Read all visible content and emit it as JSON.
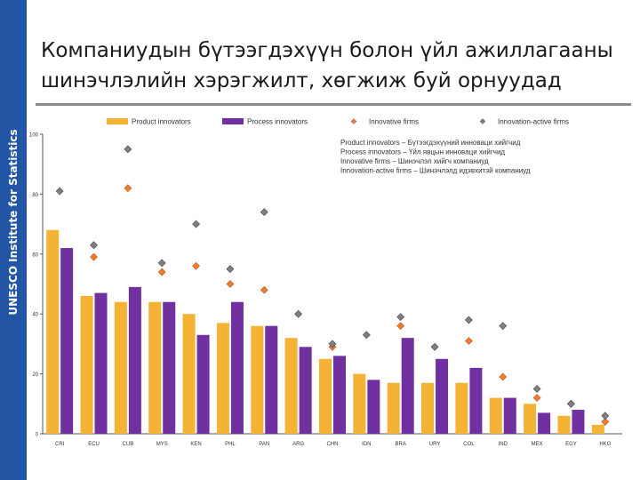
{
  "side_label": "UNESCO Institute for Statistics",
  "title_line1": "Компаниудын бүтээгдэхүүн болон үйл ажиллагааны",
  "title_line2": "шинэчлэлийн хэрэгжилт, хөгжиж буй орнуудад",
  "colors": {
    "product": "#f5b335",
    "process": "#7030a0",
    "innovative": "#ed7d31",
    "active": "#808080",
    "sidebar": "#2255a4"
  },
  "chart_data": {
    "type": "bar",
    "categories": [
      "CRI",
      "ECU",
      "CUB",
      "MYS",
      "KEN",
      "PHL",
      "PAN",
      "ARG",
      "CHN",
      "IDN",
      "BRA",
      "URY",
      "COL",
      "IND",
      "MEX",
      "EGY",
      "HKG"
    ],
    "series": [
      {
        "name": "Product innovators",
        "kind": "bar",
        "values": [
          68,
          46,
          44,
          44,
          40,
          37,
          36,
          32,
          25,
          20,
          17,
          17,
          17,
          12,
          10,
          6,
          3
        ]
      },
      {
        "name": "Process innovators",
        "kind": "bar",
        "values": [
          62,
          47,
          49,
          44,
          33,
          44,
          36,
          29,
          26,
          18,
          32,
          25,
          22,
          12,
          7,
          8,
          null
        ]
      },
      {
        "name": "Innovative firms",
        "kind": "marker",
        "values": [
          null,
          59,
          82,
          54,
          56,
          50,
          48,
          null,
          29,
          null,
          36,
          null,
          31,
          19,
          12,
          10,
          4
        ]
      },
      {
        "name": "Innovation-active firms",
        "kind": "marker",
        "values": [
          81,
          63,
          95,
          57,
          70,
          55,
          74,
          40,
          30,
          33,
          39,
          29,
          38,
          36,
          15,
          10,
          6
        ]
      }
    ],
    "ylim": [
      0,
      100
    ],
    "yticks": [
      0,
      20,
      40,
      60,
      80,
      100
    ],
    "grid": false,
    "legend_position": "top",
    "annotation_lines": [
      "Product innovators – Бүтээгдэхүүний инноваци хийгчид",
      "Process innovators – Үйл явцын инноваци хийгчид",
      "Innovative firms – Шинэчлэл хийгч компаниуд",
      "Innovation-active firms – Шинэчлэлд идэвхитэй компаниуд"
    ]
  }
}
